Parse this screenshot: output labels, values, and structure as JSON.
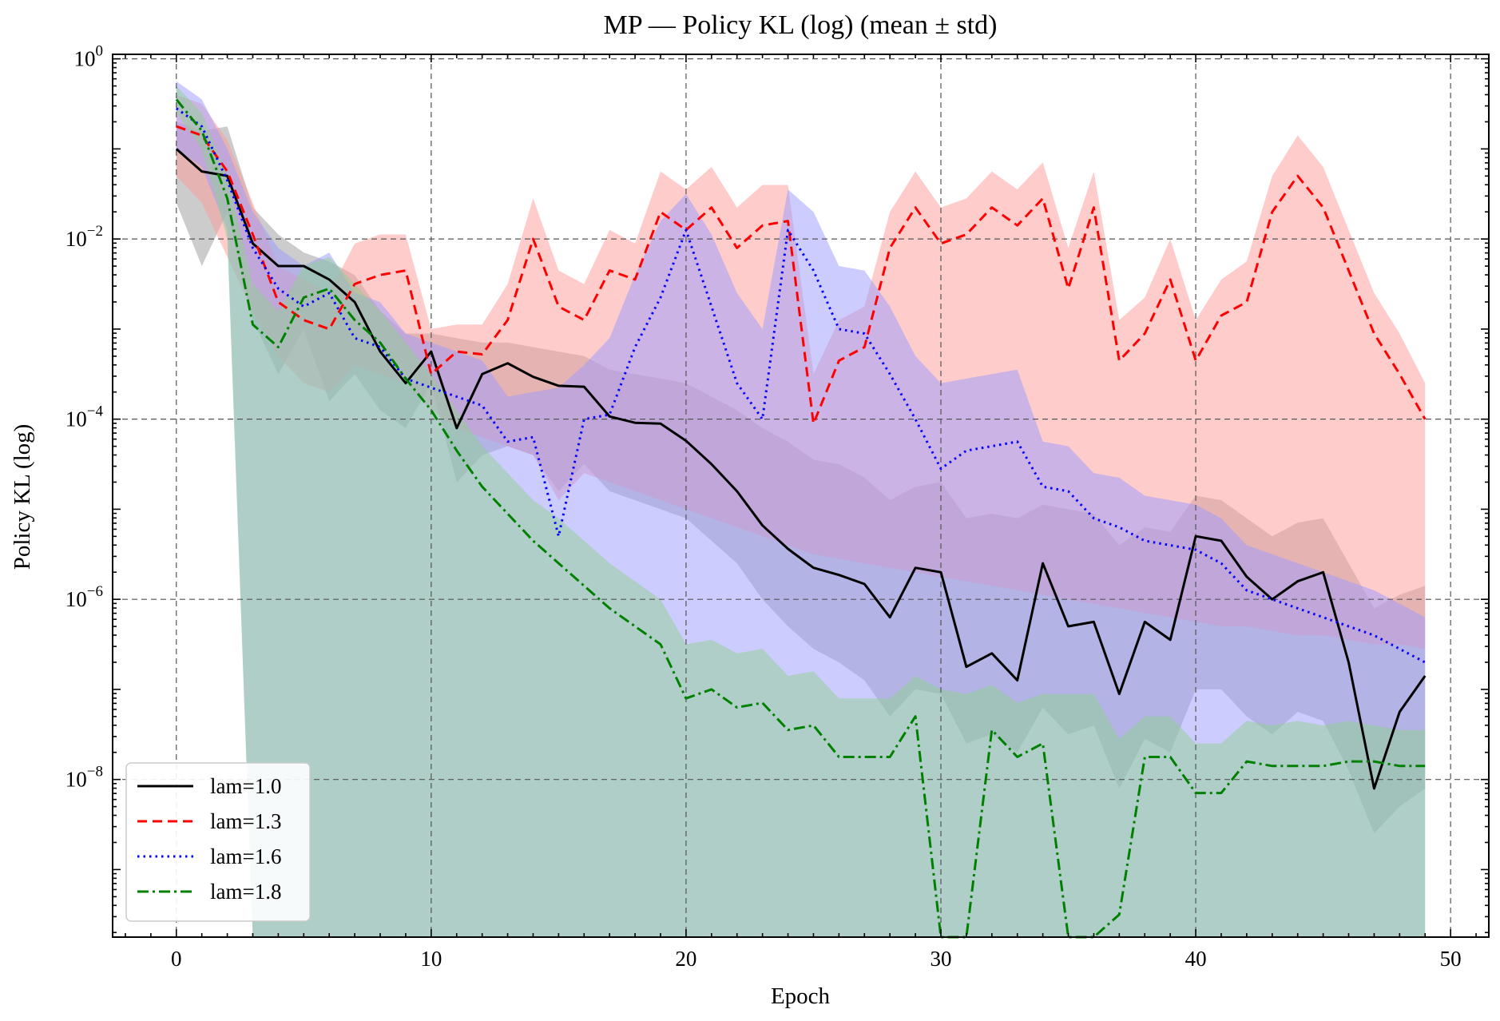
{
  "chart_data": {
    "type": "line",
    "title": "MP — Policy KL (log) (mean ± std)",
    "xlabel": "Epoch",
    "ylabel": "Policy KL (log)",
    "xlim": [
      -2.5,
      51.5
    ],
    "ylim_log10": [
      -9.75,
      0.05
    ],
    "yscale": "log",
    "grid": true,
    "legend_position": "lower-left",
    "x_ticks": [
      0,
      10,
      20,
      30,
      40,
      50
    ],
    "y_ticks": [
      {
        "base": "10",
        "exp": "0",
        "log10": 0
      },
      {
        "base": "10",
        "exp": "−2",
        "log10": -2
      },
      {
        "base": "10",
        "exp": "−4",
        "log10": -4
      },
      {
        "base": "10",
        "exp": "−6",
        "log10": -6
      },
      {
        "base": "10",
        "exp": "−8",
        "log10": -8
      }
    ],
    "series": [
      {
        "name": "lam=1.0",
        "color": "#000000",
        "band_color": "#808080",
        "band_opacity": 0.4,
        "dash": "",
        "log10_mean": [
          -1.0,
          -1.25,
          -1.3,
          -2.05,
          -2.3,
          -2.3,
          -2.45,
          -2.7,
          -3.25,
          -3.6,
          -3.25,
          -4.1,
          -3.5,
          -3.38,
          -3.53,
          -3.63,
          -3.64,
          -3.97,
          -4.04,
          -4.05,
          -4.24,
          -4.5,
          -4.8,
          -5.18,
          -5.44,
          -5.65,
          -5.73,
          -5.83,
          -6.2,
          -5.65,
          -5.7,
          -6.75,
          -6.6,
          -6.9,
          -5.6,
          -6.3,
          -6.25,
          -7.05,
          -6.25,
          -6.45,
          -5.3,
          -5.35,
          -5.75,
          -6.0,
          -5.8,
          -5.7,
          -6.7,
          -8.1,
          -7.25,
          -6.85
        ],
        "log10_upper": [
          -0.7,
          -0.8,
          -0.75,
          -1.65,
          -1.95,
          -2.15,
          -2.25,
          -2.4,
          -2.8,
          -3.05,
          -3.05,
          -3.1,
          -3.15,
          -3.15,
          -3.2,
          -3.25,
          -3.3,
          -3.45,
          -3.5,
          -3.55,
          -3.6,
          -3.75,
          -3.9,
          -4.1,
          -4.25,
          -4.45,
          -4.5,
          -4.65,
          -4.9,
          -4.75,
          -4.7,
          -5.1,
          -5.05,
          -5.1,
          -4.95,
          -5.0,
          -5.05,
          -5.4,
          -5.2,
          -5.25,
          -4.85,
          -4.9,
          -5.1,
          -5.3,
          -5.15,
          -5.1,
          -5.6,
          -6.1,
          -5.95,
          -5.85
        ],
        "log10_lower": [
          -1.6,
          -2.3,
          -1.7,
          -2.9,
          -3.5,
          -3.0,
          -3.8,
          -3.5,
          -3.9,
          -4.1,
          -3.6,
          -4.7,
          -4.4,
          -4.3,
          -4.4,
          -4.8,
          -4.5,
          -4.8,
          -4.9,
          -5.0,
          -5.1,
          -5.35,
          -5.6,
          -6.0,
          -6.3,
          -6.55,
          -6.7,
          -6.9,
          -7.3,
          -7.0,
          -7.05,
          -7.6,
          -7.5,
          -7.7,
          -7.2,
          -7.5,
          -7.4,
          -8.1,
          -7.55,
          -7.7,
          -7.0,
          -7.0,
          -7.3,
          -7.5,
          -7.25,
          -7.35,
          -7.9,
          -8.6,
          -8.3,
          -8.1
        ]
      },
      {
        "name": "lam=1.3",
        "color": "#ff0000",
        "band_color": "#ff9999",
        "band_opacity": 0.5,
        "dash": "12 7",
        "log10_mean": [
          -0.75,
          -0.85,
          -1.25,
          -1.95,
          -2.7,
          -2.9,
          -3.0,
          -2.5,
          -2.4,
          -2.35,
          -3.5,
          -3.25,
          -3.28,
          -2.9,
          -2.0,
          -2.75,
          -2.9,
          -2.35,
          -2.45,
          -1.7,
          -1.9,
          -1.65,
          -2.1,
          -1.85,
          -1.8,
          -4.05,
          -3.35,
          -3.2,
          -2.1,
          -1.65,
          -2.05,
          -1.95,
          -1.65,
          -1.85,
          -1.55,
          -2.55,
          -1.65,
          -3.35,
          -3.05,
          -2.45,
          -3.35,
          -2.85,
          -2.7,
          -1.7,
          -1.3,
          -1.65,
          -2.35,
          -3.05,
          -3.5,
          -4.0
        ],
        "log10_upper": [
          -0.4,
          -0.5,
          -0.9,
          -1.6,
          -2.3,
          -2.45,
          -2.6,
          -2.05,
          -1.95,
          -1.95,
          -3.0,
          -2.95,
          -2.95,
          -2.5,
          -1.55,
          -2.35,
          -2.5,
          -1.9,
          -2.05,
          -1.25,
          -1.45,
          -1.2,
          -1.65,
          -1.4,
          -1.4,
          -3.5,
          -2.9,
          -2.75,
          -1.7,
          -1.25,
          -1.65,
          -1.55,
          -1.25,
          -1.45,
          -1.15,
          -2.1,
          -1.25,
          -2.9,
          -2.65,
          -2.0,
          -2.9,
          -2.45,
          -2.25,
          -1.3,
          -0.85,
          -1.2,
          -1.9,
          -2.6,
          -3.05,
          -3.6
        ],
        "log10_lower": [
          -1.3,
          -1.6,
          -2.2,
          -2.8,
          -3.3,
          -3.6,
          -3.7,
          -3.4,
          -3.5,
          -3.6,
          -3.9,
          -4.1,
          -4.2,
          -4.3,
          -4.4,
          -4.9,
          -4.6,
          -4.7,
          -4.8,
          -4.9,
          -5.0,
          -5.1,
          -5.2,
          -5.3,
          -5.4,
          -5.5,
          -5.55,
          -5.6,
          -5.65,
          -5.7,
          -5.75,
          -5.8,
          -5.85,
          -5.9,
          -5.95,
          -6.0,
          -6.05,
          -6.1,
          -6.15,
          -6.2,
          -6.25,
          -6.3,
          -6.3,
          -6.35,
          -6.4,
          -6.4,
          -6.45,
          -6.5,
          -6.5,
          -6.55
        ]
      },
      {
        "name": "lam=1.6",
        "color": "#0000ff",
        "band_color": "#9999ff",
        "band_opacity": 0.5,
        "dash": "2.5 5",
        "log10_mean": [
          -0.55,
          -0.75,
          -1.35,
          -2.1,
          -2.55,
          -2.75,
          -2.6,
          -3.1,
          -3.2,
          -3.55,
          -3.65,
          -3.75,
          -3.85,
          -4.25,
          -4.2,
          -5.3,
          -4.0,
          -3.95,
          -3.2,
          -2.65,
          -1.9,
          -2.75,
          -3.6,
          -4.0,
          -1.9,
          -2.35,
          -3.0,
          -3.05,
          -3.5,
          -4.0,
          -4.55,
          -4.35,
          -4.3,
          -4.25,
          -4.75,
          -4.8,
          -5.1,
          -5.2,
          -5.35,
          -5.4,
          -5.45,
          -5.6,
          -5.9,
          -6.0,
          -6.1,
          -6.2,
          -6.3,
          -6.4,
          -6.55,
          -6.7
        ],
        "log10_upper": [
          -0.25,
          -0.45,
          -1.0,
          -1.7,
          -2.1,
          -2.3,
          -2.15,
          -2.6,
          -2.7,
          -3.05,
          -3.15,
          -3.25,
          -3.35,
          -3.75,
          -3.7,
          -3.65,
          -3.4,
          -3.1,
          -2.4,
          -1.8,
          -1.5,
          -1.95,
          -2.6,
          -3.0,
          -1.45,
          -1.7,
          -2.3,
          -2.35,
          -2.75,
          -3.3,
          -3.6,
          -3.55,
          -3.5,
          -3.45,
          -4.25,
          -4.3,
          -4.6,
          -4.65,
          -4.85,
          -4.9,
          -4.95,
          -5.1,
          -5.4,
          -5.5,
          -5.6,
          -5.7,
          -5.8,
          -5.9,
          -6.05,
          -6.2
        ],
        "log10_lower": [
          -1.0,
          -1.2,
          -1.9,
          -9.75,
          -9.75,
          -9.75,
          -9.75,
          -9.75,
          -9.75,
          -9.75,
          -9.75,
          -9.75,
          -9.75,
          -9.75,
          -9.75,
          -9.75,
          -9.75,
          -9.75,
          -9.75,
          -9.75,
          -9.75,
          -9.75,
          -9.75,
          -9.75,
          -9.75,
          -9.75,
          -9.75,
          -9.75,
          -9.75,
          -9.75,
          -9.75,
          -9.75,
          -9.75,
          -9.75,
          -9.75,
          -9.75,
          -9.75,
          -9.75,
          -9.75,
          -9.75,
          -9.75,
          -9.75,
          -9.75,
          -9.75,
          -9.75,
          -9.75,
          -9.75,
          -9.75,
          -9.75,
          -9.75
        ]
      },
      {
        "name": "lam=1.8",
        "color": "#008000",
        "band_color": "#90d090",
        "band_opacity": 0.5,
        "dash": "14 5 3 5",
        "log10_mean": [
          -0.45,
          -0.8,
          -1.55,
          -2.95,
          -3.2,
          -2.65,
          -2.55,
          -2.9,
          -3.15,
          -3.55,
          -3.9,
          -4.35,
          -4.75,
          -5.05,
          -5.35,
          -5.6,
          -5.85,
          -6.1,
          -6.3,
          -6.5,
          -7.1,
          -7.0,
          -7.2,
          -7.15,
          -7.45,
          -7.4,
          -7.75,
          -7.75,
          -7.75,
          -7.3,
          -9.75,
          -9.75,
          -7.45,
          -7.75,
          -7.6,
          -9.75,
          -9.75,
          -9.5,
          -7.75,
          -7.75,
          -8.15,
          -8.15,
          -7.8,
          -7.85,
          -7.85,
          -7.85,
          -7.8,
          -7.8,
          -7.85,
          -7.85
        ],
        "log10_upper": [
          -0.3,
          -0.6,
          -1.3,
          -2.5,
          -2.8,
          -2.3,
          -2.2,
          -2.5,
          -2.8,
          -3.15,
          -3.5,
          -3.9,
          -4.3,
          -4.6,
          -4.9,
          -5.1,
          -5.35,
          -5.6,
          -5.8,
          -6.0,
          -6.5,
          -6.45,
          -6.6,
          -6.55,
          -6.85,
          -6.8,
          -7.1,
          -7.1,
          -7.1,
          -6.85,
          -7.0,
          -7.05,
          -6.95,
          -7.15,
          -7.05,
          -7.05,
          -7.05,
          -7.55,
          -7.3,
          -7.3,
          -7.6,
          -7.6,
          -7.35,
          -7.4,
          -7.35,
          -7.4,
          -7.35,
          -7.4,
          -7.45,
          -7.45
        ],
        "log10_lower": [
          -0.6,
          -1.0,
          -2.0,
          -9.75,
          -9.75,
          -9.75,
          -9.75,
          -9.75,
          -9.75,
          -9.75,
          -9.75,
          -9.75,
          -9.75,
          -9.75,
          -9.75,
          -9.75,
          -9.75,
          -9.75,
          -9.75,
          -9.75,
          -9.75,
          -9.75,
          -9.75,
          -9.75,
          -9.75,
          -9.75,
          -9.75,
          -9.75,
          -9.75,
          -9.75,
          -9.75,
          -9.75,
          -9.75,
          -9.75,
          -9.75,
          -9.75,
          -9.75,
          -9.75,
          -9.75,
          -9.75,
          -9.75,
          -9.75,
          -9.75,
          -9.75,
          -9.75,
          -9.75,
          -9.75,
          -9.75,
          -9.75,
          -9.75
        ]
      }
    ]
  }
}
